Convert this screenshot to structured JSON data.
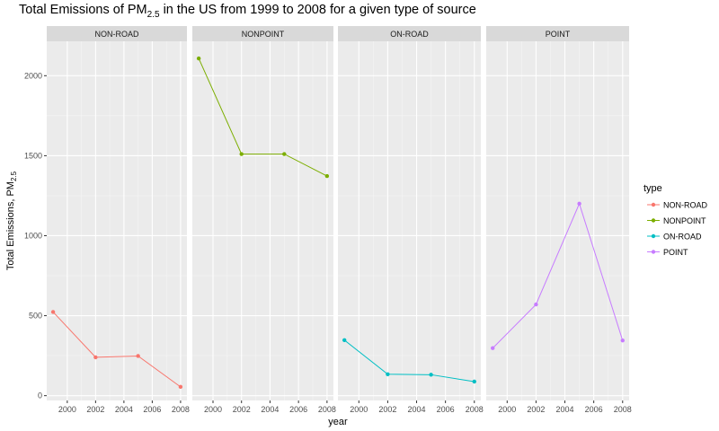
{
  "chart_data": {
    "type": "line",
    "title_parts": [
      "Total Emissions of PM",
      "2.5",
      " in the US from 1999 to 2008 for a given type of source"
    ],
    "xlabel": "year",
    "ylabel_parts": [
      "Total Emissions, PM",
      "2.5"
    ],
    "x": [
      1999,
      2002,
      2005,
      2008
    ],
    "xticks": [
      2000,
      2002,
      2004,
      2006,
      2008
    ],
    "xlim": [
      1998.55,
      2008.45
    ],
    "yticks": [
      0,
      500,
      1000,
      1500,
      2000
    ],
    "ylim": [
      -30,
      2215
    ],
    "legend_title": "type",
    "legend_position": "right",
    "grid": true,
    "panel_background": "#ebebeb",
    "strip_background": "#d9d9d9",
    "series": [
      {
        "name": "NON-ROAD",
        "color": "#F8766D",
        "values": [
          523,
          240,
          248,
          55
        ]
      },
      {
        "name": "NONPOINT",
        "color": "#7CAE00",
        "values": [
          2108,
          1510,
          1510,
          1373
        ]
      },
      {
        "name": "ON-ROAD",
        "color": "#00BFC4",
        "values": [
          347,
          134,
          131,
          88
        ]
      },
      {
        "name": "POINT",
        "color": "#C77CFF",
        "values": [
          297,
          570,
          1200,
          345
        ]
      }
    ]
  }
}
